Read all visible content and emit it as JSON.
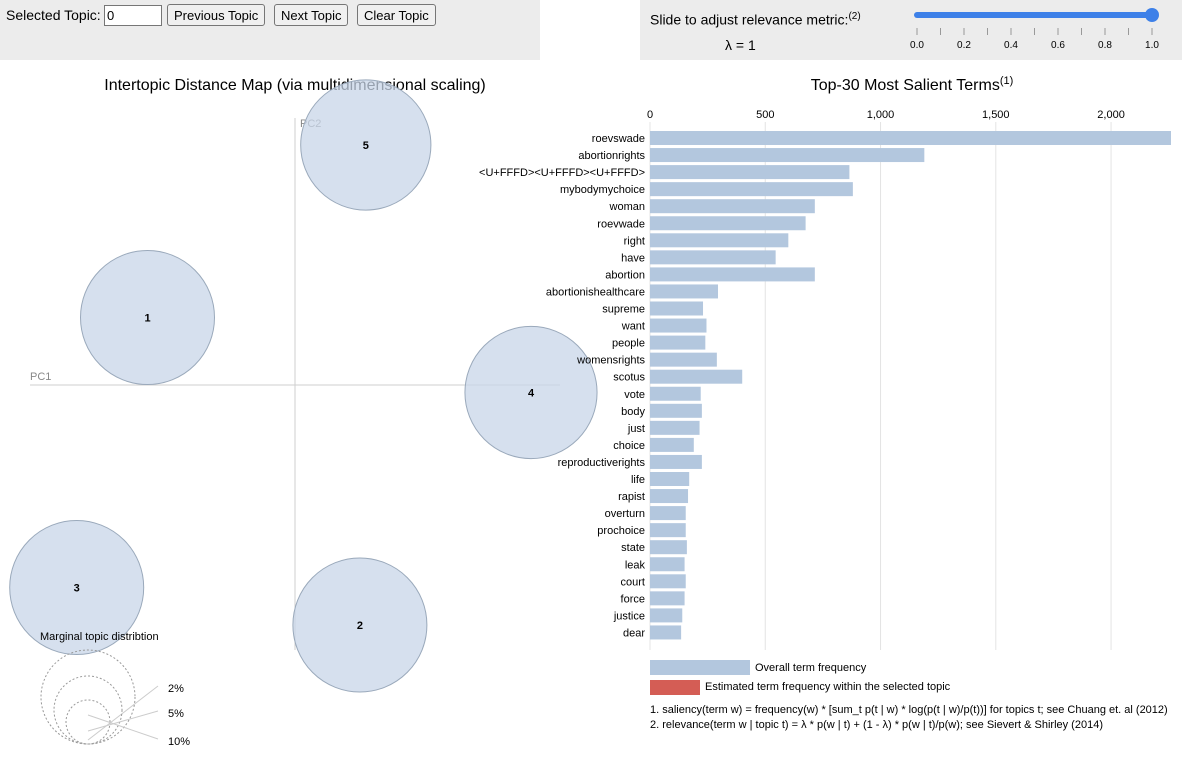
{
  "controls": {
    "selected_topic_label": "Selected Topic:",
    "selected_topic_value": "0",
    "prev_label": "Previous Topic",
    "next_label": "Next Topic",
    "clear_label": "Clear Topic",
    "slider_label": "Slide to adjust relevance metric:",
    "slider_footnote": "(2)",
    "lambda_text": "λ = 1",
    "slider_ticks": [
      "0.0",
      "0.2",
      "0.4",
      "0.6",
      "0.8",
      "1.0"
    ],
    "slider_value": 1.0
  },
  "colors": {
    "bar": "#b3c7de",
    "selected": "#d45d55",
    "circle_fill": "#c8d6e8",
    "circle_stroke": "#9aa9bb",
    "slider": "#3d80e8"
  },
  "map": {
    "title": "Intertopic Distance Map (via multidimensional scaling)",
    "pc1_label": "PC1",
    "pc2_label": "PC2",
    "marginal_title": "Marginal topic distribtion",
    "marginal_labels": [
      "2%",
      "5%",
      "10%"
    ],
    "topics": [
      {
        "id": "1",
        "pc1": -0.5,
        "pc2": 0.27,
        "share": 7.2
      },
      {
        "id": "2",
        "pc1": 0.22,
        "pc2": -0.96,
        "share": 7.2
      },
      {
        "id": "3",
        "pc1": -0.74,
        "pc2": -0.81,
        "share": 7.2
      },
      {
        "id": "4",
        "pc1": 0.8,
        "pc2": -0.03,
        "share": 7.0
      },
      {
        "id": "5",
        "pc1": 0.24,
        "pc2": 0.96,
        "share": 6.8
      }
    ]
  },
  "chart_data": {
    "type": "bar",
    "title": "Top-30 Most Salient Terms",
    "title_footnote": "(1)",
    "xlim": [
      0,
      2260
    ],
    "xticks": [
      0,
      500,
      1000,
      1500,
      2000
    ],
    "xtick_labels": [
      "0",
      "500",
      "1,000",
      "1,500",
      "2,000"
    ],
    "categories": [
      "roevswade",
      "abortionrights",
      "<U+FFFD><U+FFFD><U+FFFD>",
      "mybodymychoice",
      "woman",
      "roevwade",
      "right",
      "have",
      "abortion",
      "abortionishealthcare",
      "supreme",
      "want",
      "people",
      "womensrights",
      "scotus",
      "vote",
      "body",
      "just",
      "choice",
      "reproductiverights",
      "life",
      "rapist",
      "overturn",
      "prochoice",
      "state",
      "leak",
      "court",
      "force",
      "justice",
      "dear"
    ],
    "series": [
      {
        "name": "Overall term frequency",
        "values": [
          2260,
          1190,
          865,
          880,
          715,
          675,
          600,
          545,
          715,
          295,
          230,
          245,
          240,
          290,
          400,
          220,
          225,
          215,
          190,
          225,
          170,
          165,
          155,
          155,
          160,
          150,
          155,
          150,
          140,
          135
        ]
      }
    ]
  },
  "legend": {
    "overall": "Overall term frequency",
    "estimated": "Estimated term frequency within the selected topic"
  },
  "footnotes": {
    "n1": "1. saliency(term w) = frequency(w) * [sum_t p(t | w) * log(p(t | w)/p(t))] for topics t; see Chuang et. al (2012)",
    "n2": "2. relevance(term w | topic t) = λ * p(w | t) + (1 - λ) * p(w | t)/p(w); see Sievert & Shirley (2014)"
  }
}
